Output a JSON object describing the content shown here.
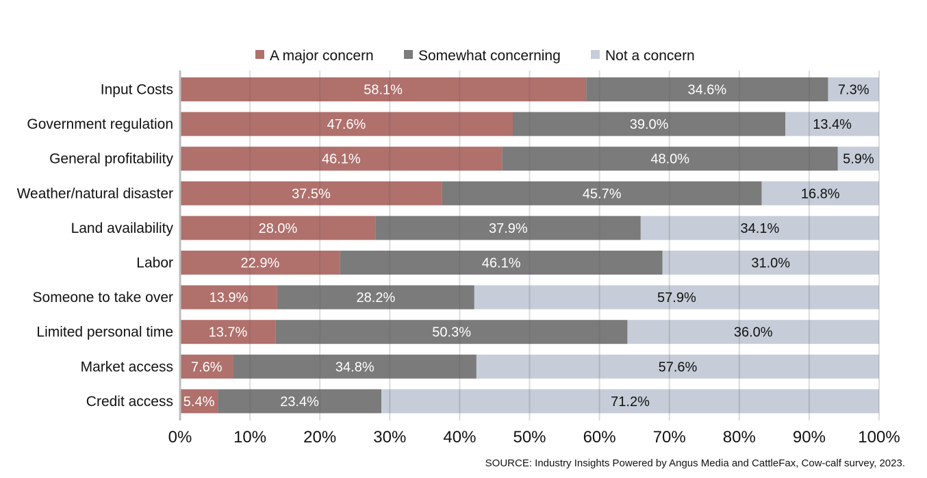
{
  "chart_data": {
    "type": "bar",
    "orientation": "horizontal",
    "stacked": true,
    "title": "",
    "xlabel": "",
    "ylabel": "",
    "xlim": [
      0,
      100
    ],
    "x_ticks": [
      "0%",
      "10%",
      "20%",
      "30%",
      "40%",
      "50%",
      "60%",
      "70%",
      "80%",
      "90%",
      "100%"
    ],
    "grid": true,
    "legend_position": "top-center",
    "categories": [
      "Input Costs",
      "Government regulation",
      "General profitability",
      "Weather/natural disaster",
      "Land availability",
      "Labor",
      "Someone to take over",
      "Limited personal time",
      "Market access",
      "Credit access"
    ],
    "series": [
      {
        "name": "A major concern",
        "color": "#b0706c",
        "label_color": "#ffffff",
        "values": [
          58.1,
          47.6,
          46.1,
          37.5,
          28.0,
          22.9,
          13.9,
          13.7,
          7.6,
          5.4
        ]
      },
      {
        "name": "Somewhat concerning",
        "color": "#7b7b7b",
        "label_color": "#ffffff",
        "values": [
          34.6,
          39.0,
          48.0,
          45.7,
          37.9,
          46.1,
          28.2,
          50.3,
          34.8,
          23.4
        ]
      },
      {
        "name": "Not a concern",
        "color": "#c6cdd8",
        "label_color": "#111111",
        "values": [
          7.3,
          13.4,
          5.9,
          16.8,
          34.1,
          31.0,
          57.9,
          36.0,
          57.6,
          71.2
        ]
      }
    ],
    "source": "SOURCE: Industry Insights Powered by Angus Media and CattleFax, Cow-calf survey, 2023."
  }
}
